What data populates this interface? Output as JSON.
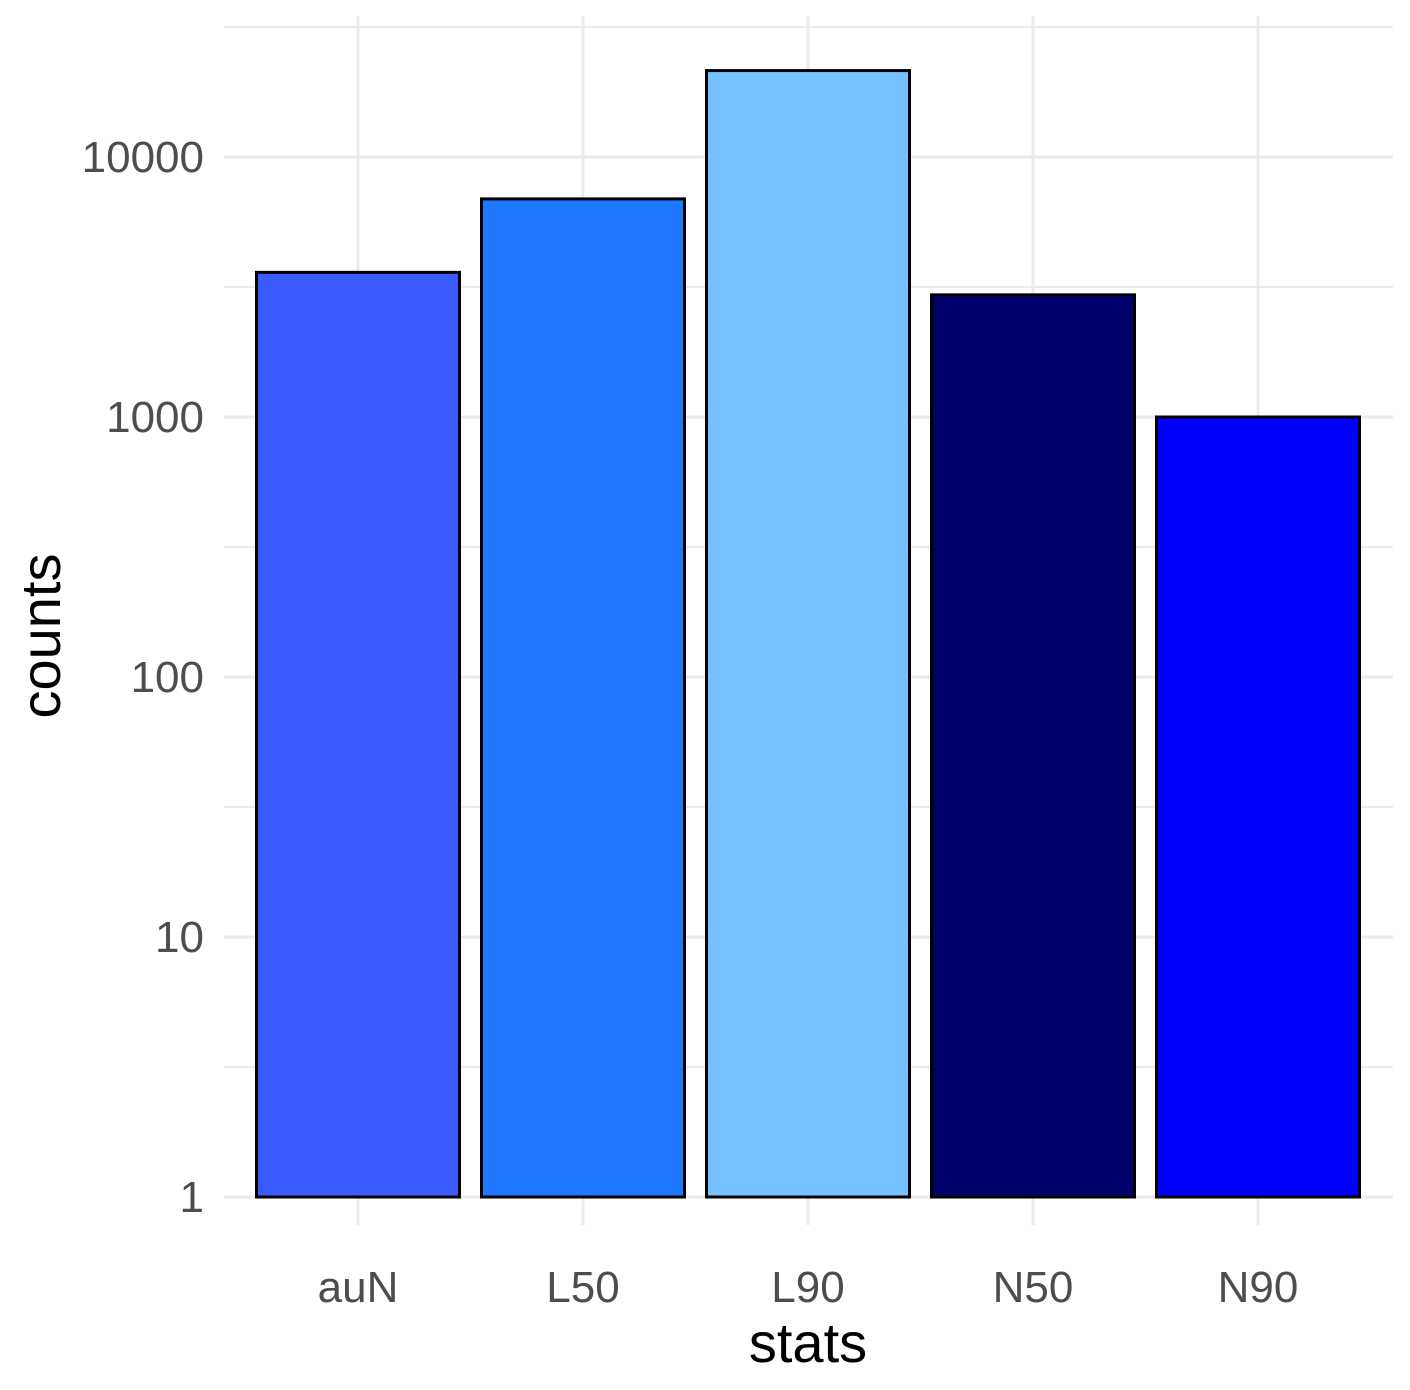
{
  "chart_data": {
    "type": "bar",
    "categories": [
      "auN",
      "L50",
      "L90",
      "N50",
      "N90"
    ],
    "values": [
      3600,
      6900,
      21500,
      2950,
      1000
    ],
    "colors": [
      "#3A5CFF",
      "#1E78FF",
      "#76C1FF",
      "#00006A",
      "#0000FF"
    ],
    "bar_outline_color": "#000000",
    "xlabel": "stats",
    "ylabel": "counts",
    "y_scale": "log10",
    "ylim": [
      1,
      30000
    ],
    "y_ticks": [
      1,
      10,
      100,
      1000,
      10000
    ],
    "y_tick_labels": [
      "1",
      "10",
      "100",
      "1000",
      "10000"
    ],
    "y_minor_gridlines": [
      3.1623,
      31.623,
      316.23,
      3162.3,
      31623
    ],
    "grid": true,
    "grid_color": "#EBEBEB",
    "legend": "none"
  }
}
